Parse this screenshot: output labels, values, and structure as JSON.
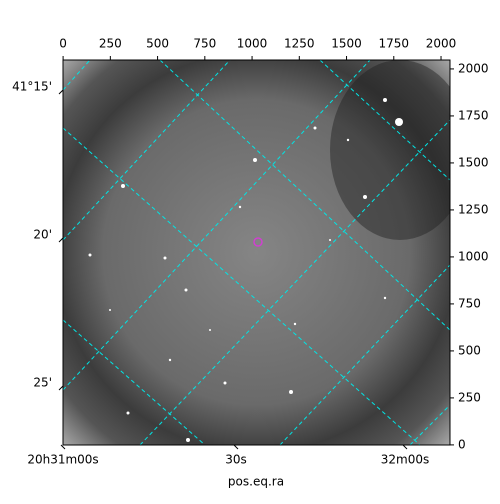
{
  "chart_data": {
    "type": "image",
    "xlabel": "pos.eq.ra",
    "xlim": [
      -0.5,
      2047.5
    ],
    "ylim": [
      -0.5,
      2047.5
    ],
    "xticks": [
      0,
      250,
      500,
      750,
      1000,
      1250,
      1500,
      1750,
      2000
    ],
    "yticks": [
      0,
      250,
      500,
      750,
      1000,
      1250,
      1500,
      1750,
      2000
    ],
    "ra_ticks": [
      "20h31m00s",
      "30s",
      "32m00s"
    ],
    "dec_ticks": [
      "41°15'",
      "20'",
      "25'"
    ],
    "grid": true,
    "grid_color": "#00e5e5"
  }
}
